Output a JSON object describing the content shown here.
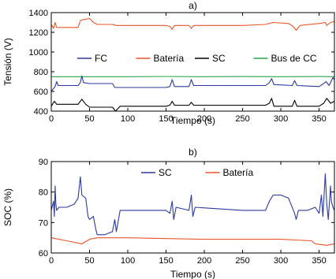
{
  "chart_data": [
    {
      "type": "line",
      "title": "a)",
      "xlabel": "Tiempo (s)",
      "ylabel": "Tensión (V)",
      "xlim": [
        0,
        370
      ],
      "ylim": [
        400,
        1400
      ],
      "xticks": [
        0,
        50,
        100,
        150,
        200,
        250,
        300,
        350
      ],
      "yticks": [
        400,
        600,
        800,
        1000,
        1200,
        1400
      ],
      "xtick_labels": [
        "0",
        "50",
        "100",
        "150",
        "200",
        "250",
        "300",
        "350"
      ],
      "ytick_labels": [
        "400",
        "600",
        "800",
        "1000",
        "1200",
        "1400"
      ],
      "legend_position": "center",
      "series": [
        {
          "name": "FC",
          "color": "#2b3a9e",
          "points": [
            [
              0,
              600
            ],
            [
              5,
              650
            ],
            [
              7,
              700
            ],
            [
              9,
              660
            ],
            [
              35,
              660
            ],
            [
              38,
              690
            ],
            [
              40,
              760
            ],
            [
              42,
              690
            ],
            [
              50,
              680
            ],
            [
              80,
              680
            ],
            [
              83,
              640
            ],
            [
              90,
              640
            ],
            [
              150,
              640
            ],
            [
              155,
              650
            ],
            [
              158,
              720
            ],
            [
              161,
              650
            ],
            [
              180,
              650
            ],
            [
              183,
              720
            ],
            [
              186,
              660
            ],
            [
              250,
              660
            ],
            [
              280,
              660
            ],
            [
              285,
              690
            ],
            [
              288,
              730
            ],
            [
              291,
              670
            ],
            [
              315,
              660
            ],
            [
              318,
              710
            ],
            [
              321,
              660
            ],
            [
              350,
              650
            ],
            [
              356,
              680
            ],
            [
              359,
              700
            ],
            [
              363,
              660
            ],
            [
              368,
              740
            ],
            [
              370,
              720
            ]
          ]
        },
        {
          "name": "Batería",
          "color": "#e8562a",
          "points": [
            [
              0,
              1280
            ],
            [
              3,
              1240
            ],
            [
              5,
              1300
            ],
            [
              7,
              1250
            ],
            [
              35,
              1250
            ],
            [
              38,
              1320
            ],
            [
              42,
              1330
            ],
            [
              50,
              1340
            ],
            [
              55,
              1300
            ],
            [
              60,
              1280
            ],
            [
              80,
              1280
            ],
            [
              85,
              1270
            ],
            [
              150,
              1270
            ],
            [
              155,
              1260
            ],
            [
              158,
              1230
            ],
            [
              161,
              1270
            ],
            [
              180,
              1270
            ],
            [
              183,
              1240
            ],
            [
              186,
              1270
            ],
            [
              250,
              1270
            ],
            [
              280,
              1280
            ],
            [
              290,
              1300
            ],
            [
              310,
              1290
            ],
            [
              316,
              1260
            ],
            [
              320,
              1220
            ],
            [
              325,
              1270
            ],
            [
              350,
              1290
            ],
            [
              358,
              1300
            ],
            [
              360,
              1270
            ],
            [
              365,
              1300
            ],
            [
              370,
              1310
            ]
          ]
        },
        {
          "name": "SC",
          "color": "#000000",
          "points": [
            [
              0,
              450
            ],
            [
              4,
              500
            ],
            [
              7,
              470
            ],
            [
              35,
              470
            ],
            [
              40,
              520
            ],
            [
              45,
              470
            ],
            [
              50,
              440
            ],
            [
              80,
              440
            ],
            [
              84,
              400
            ],
            [
              90,
              450
            ],
            [
              150,
              450
            ],
            [
              155,
              460
            ],
            [
              158,
              500
            ],
            [
              161,
              460
            ],
            [
              180,
              460
            ],
            [
              183,
              490
            ],
            [
              186,
              460
            ],
            [
              250,
              460
            ],
            [
              280,
              460
            ],
            [
              285,
              480
            ],
            [
              288,
              530
            ],
            [
              291,
              450
            ],
            [
              315,
              450
            ],
            [
              318,
              510
            ],
            [
              321,
              450
            ],
            [
              350,
              450
            ],
            [
              356,
              480
            ],
            [
              360,
              530
            ],
            [
              365,
              480
            ],
            [
              370,
              500
            ]
          ]
        },
        {
          "name": "Bus de CC",
          "color": "#2aa34a",
          "points": [
            [
              0,
              750
            ],
            [
              100,
              750
            ],
            [
              150,
              752
            ],
            [
              200,
              750
            ],
            [
              250,
              751
            ],
            [
              300,
              750
            ],
            [
              350,
              751
            ],
            [
              370,
              750
            ]
          ]
        }
      ]
    },
    {
      "type": "line",
      "title": "b)",
      "xlabel": "Tiempo (s)",
      "ylabel": "SOC (%)",
      "xlim": [
        0,
        370
      ],
      "ylim": [
        60,
        90
      ],
      "xticks": [
        0,
        50,
        100,
        150,
        200,
        250,
        300,
        350
      ],
      "yticks": [
        60,
        70,
        80,
        90
      ],
      "xtick_labels": [
        "0",
        "50",
        "100",
        "150",
        "200",
        "250",
        "300",
        "350"
      ],
      "ytick_labels": [
        "60",
        "70",
        "80",
        "90"
      ],
      "legend_position": "top-center",
      "series": [
        {
          "name": "SC",
          "color": "#2b3a9e",
          "points": [
            [
              0,
              74
            ],
            [
              3,
              77
            ],
            [
              4,
              72
            ],
            [
              5,
              82
            ],
            [
              6,
              76
            ],
            [
              7,
              74
            ],
            [
              10,
              75
            ],
            [
              20,
              75
            ],
            [
              30,
              76
            ],
            [
              35,
              78
            ],
            [
              38,
              85
            ],
            [
              40,
              79
            ],
            [
              45,
              78
            ],
            [
              48,
              72
            ],
            [
              50,
              71
            ],
            [
              55,
              72
            ],
            [
              58,
              68
            ],
            [
              60,
              66
            ],
            [
              70,
              66
            ],
            [
              80,
              67
            ],
            [
              83,
              71
            ],
            [
              85,
              67
            ],
            [
              90,
              74
            ],
            [
              100,
              74
            ],
            [
              150,
              74
            ],
            [
              155,
              73
            ],
            [
              158,
              77
            ],
            [
              160,
              71
            ],
            [
              163,
              75
            ],
            [
              180,
              74
            ],
            [
              183,
              79
            ],
            [
              185,
              72
            ],
            [
              188,
              75
            ],
            [
              250,
              74
            ],
            [
              280,
              74
            ],
            [
              285,
              77
            ],
            [
              290,
              79
            ],
            [
              300,
              79
            ],
            [
              310,
              78
            ],
            [
              318,
              73
            ],
            [
              320,
              71
            ],
            [
              323,
              74
            ],
            [
              335,
              74
            ],
            [
              345,
              75
            ],
            [
              350,
              73
            ],
            [
              353,
              79
            ],
            [
              355,
              72
            ],
            [
              358,
              86
            ],
            [
              360,
              76
            ],
            [
              362,
              71
            ],
            [
              365,
              82
            ],
            [
              366,
              77
            ],
            [
              368,
              75
            ],
            [
              370,
              74
            ]
          ]
        },
        {
          "name": "Batería",
          "color": "#e8562a",
          "points": [
            [
              0,
              65
            ],
            [
              20,
              64
            ],
            [
              40,
              63
            ],
            [
              50,
              64.5
            ],
            [
              60,
              65
            ],
            [
              100,
              65
            ],
            [
              200,
              64.5
            ],
            [
              300,
              64.5
            ],
            [
              340,
              64
            ],
            [
              345,
              63
            ],
            [
              360,
              62.5
            ],
            [
              370,
              63
            ]
          ]
        }
      ]
    }
  ]
}
